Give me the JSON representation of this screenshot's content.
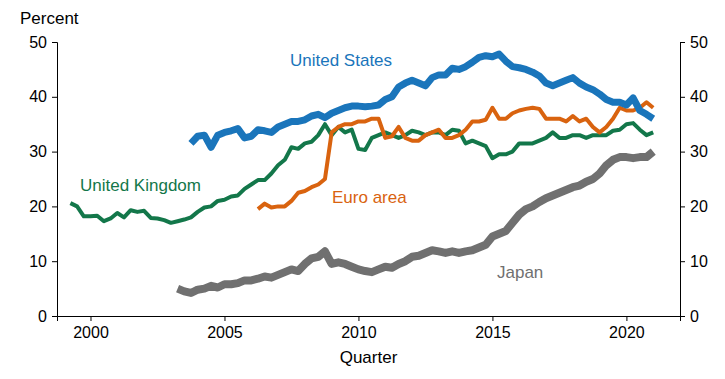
{
  "chart_data": {
    "type": "line",
    "x_label": "Quarter",
    "y_label": "Percent",
    "x": [
      1999.25,
      1999.5,
      1999.75,
      2000,
      2000.25,
      2000.5,
      2000.75,
      2001,
      2001.25,
      2001.5,
      2001.75,
      2002,
      2002.25,
      2002.5,
      2002.75,
      2003,
      2003.25,
      2003.5,
      2003.75,
      2004,
      2004.25,
      2004.5,
      2004.75,
      2005,
      2005.25,
      2005.5,
      2005.75,
      2006,
      2006.25,
      2006.5,
      2006.75,
      2007,
      2007.25,
      2007.5,
      2007.75,
      2008,
      2008.25,
      2008.5,
      2008.75,
      2009,
      2009.25,
      2009.5,
      2009.75,
      2010,
      2010.25,
      2010.5,
      2010.75,
      2011,
      2011.25,
      2011.5,
      2011.75,
      2012,
      2012.25,
      2012.5,
      2012.75,
      2013,
      2013.25,
      2013.5,
      2013.75,
      2014,
      2014.25,
      2014.5,
      2014.75,
      2015,
      2015.25,
      2015.5,
      2015.75,
      2016,
      2016.25,
      2016.5,
      2016.75,
      2017,
      2017.25,
      2017.5,
      2017.75,
      2018,
      2018.25,
      2018.5,
      2018.75,
      2019,
      2019.25,
      2019.5,
      2019.75,
      2020,
      2020.25,
      2020.5,
      2020.75,
      2021
    ],
    "series": [
      {
        "name": "United States",
        "color": "#1a75bb",
        "values": [
          null,
          null,
          null,
          null,
          null,
          null,
          null,
          null,
          null,
          null,
          null,
          null,
          null,
          null,
          null,
          null,
          null,
          null,
          31.5,
          32.8,
          33.0,
          30.8,
          33.0,
          33.5,
          33.8,
          34.2,
          32.5,
          32.8,
          34.0,
          33.8,
          33.5,
          34.5,
          35.0,
          35.5,
          35.5,
          35.8,
          36.5,
          36.8,
          36.2,
          37.0,
          37.5,
          38.0,
          38.3,
          38.3,
          38.2,
          38.3,
          38.5,
          39.5,
          40.0,
          41.8,
          42.5,
          43.0,
          42.5,
          42.0,
          43.5,
          44.0,
          44.0,
          45.2,
          45.0,
          45.5,
          46.3,
          47.2,
          47.5,
          47.3,
          47.8,
          46.5,
          45.5,
          45.3,
          45.0,
          44.5,
          43.8,
          42.5,
          42.0,
          42.5,
          43.0,
          43.5,
          42.5,
          41.8,
          41.3,
          40.5,
          39.5,
          39.0,
          39.0,
          38.5,
          39.8,
          37.5,
          36.8,
          36.0
        ]
      },
      {
        "name": "United Kingdom",
        "color": "#13774a",
        "values": [
          20.6,
          20.0,
          18.2,
          18.2,
          18.3,
          17.3,
          17.8,
          18.8,
          18.0,
          19.3,
          19.0,
          19.2,
          17.9,
          17.8,
          17.5,
          17.0,
          17.3,
          17.6,
          18.0,
          19.0,
          19.8,
          20.0,
          21.0,
          21.2,
          21.8,
          22.0,
          23.2,
          24.0,
          24.8,
          24.8,
          26.0,
          27.5,
          28.5,
          30.8,
          30.5,
          31.5,
          31.8,
          33.0,
          35.0,
          33.0,
          34.5,
          33.5,
          34.0,
          30.5,
          30.3,
          32.5,
          33.0,
          33.5,
          33.0,
          32.5,
          33.0,
          33.8,
          33.5,
          33.0,
          33.5,
          33.5,
          33.0,
          34.0,
          33.8,
          31.5,
          32.0,
          31.5,
          31.0,
          28.8,
          29.5,
          29.5,
          30.0,
          31.5,
          31.5,
          31.5,
          32.0,
          32.5,
          33.5,
          32.5,
          32.5,
          33.0,
          33.0,
          32.5,
          33.0,
          33.0,
          33.0,
          33.8,
          34.0,
          35.0,
          35.2,
          34.0,
          33.0,
          33.5
        ]
      },
      {
        "name": "Euro area",
        "color": "#d9630f",
        "values": [
          null,
          null,
          null,
          null,
          null,
          null,
          null,
          null,
          null,
          null,
          null,
          null,
          null,
          null,
          null,
          null,
          null,
          null,
          null,
          null,
          null,
          null,
          null,
          null,
          null,
          null,
          null,
          null,
          19.5,
          20.5,
          19.8,
          20.0,
          20.0,
          21.0,
          22.5,
          22.8,
          23.5,
          24.0,
          25.0,
          33.5,
          34.5,
          35.0,
          35.0,
          35.5,
          35.5,
          36.0,
          36.0,
          32.5,
          32.8,
          34.5,
          32.5,
          32.0,
          32.0,
          33.0,
          33.5,
          34.0,
          32.5,
          32.5,
          33.0,
          34.0,
          35.5,
          35.5,
          35.8,
          38.0,
          36.0,
          36.0,
          37.0,
          37.5,
          37.8,
          38.0,
          37.8,
          36.0,
          36.0,
          36.0,
          35.5,
          36.5,
          35.5,
          36.0,
          34.5,
          33.5,
          34.5,
          36.0,
          38.0,
          37.5,
          37.5,
          38.0,
          39.0,
          38.0
        ]
      },
      {
        "name": "Japan",
        "color": "#707070",
        "values": [
          null,
          null,
          null,
          null,
          null,
          null,
          null,
          null,
          null,
          null,
          null,
          null,
          null,
          null,
          null,
          null,
          5.0,
          4.5,
          4.2,
          4.8,
          5.0,
          5.5,
          5.2,
          5.8,
          5.8,
          6.0,
          6.5,
          6.5,
          6.8,
          7.2,
          7.0,
          7.5,
          8.0,
          8.5,
          8.2,
          9.5,
          10.5,
          10.8,
          11.8,
          9.5,
          9.8,
          9.5,
          9.0,
          8.5,
          8.2,
          8.0,
          8.5,
          9.0,
          8.8,
          9.5,
          10.0,
          10.8,
          11.0,
          11.5,
          12.0,
          11.8,
          11.5,
          11.8,
          11.5,
          11.8,
          12.0,
          12.5,
          13.0,
          14.5,
          15.0,
          15.5,
          17.0,
          18.5,
          19.5,
          20.0,
          20.8,
          21.5,
          22.0,
          22.5,
          23.0,
          23.5,
          23.8,
          24.5,
          25.0,
          26.0,
          27.5,
          28.5,
          29.0,
          29.0,
          28.8,
          29.0,
          29.0,
          30.0
        ]
      }
    ],
    "xlim": [
      1998.75,
      2022
    ],
    "xticks": [
      2000,
      2005,
      2010,
      2015,
      2020
    ],
    "ylim": [
      0,
      50
    ],
    "yticks": [
      0,
      10,
      20,
      30,
      40,
      50
    ],
    "y2lim": [
      0,
      50
    ],
    "y2ticks": [
      0,
      10,
      20,
      30,
      40,
      50
    ],
    "grid": false
  }
}
